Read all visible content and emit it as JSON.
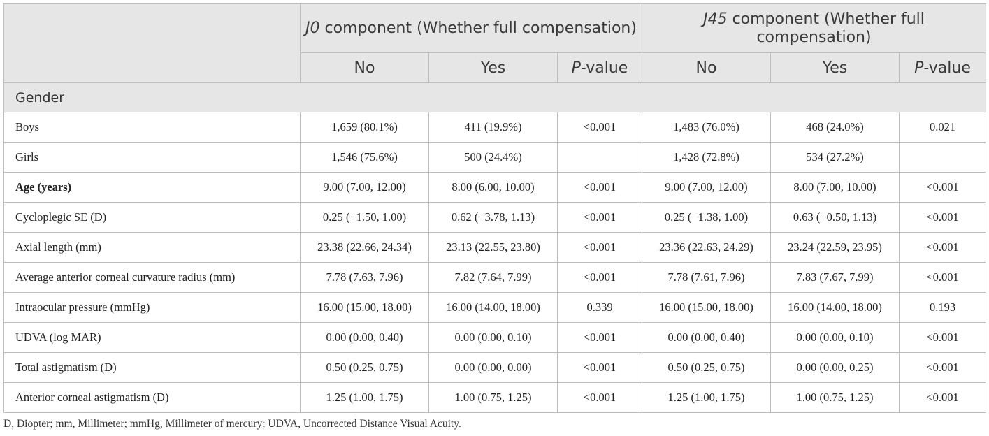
{
  "header": {
    "group1_italic": "J0",
    "group1_rest": " component (Whether full compensation)",
    "group2_italic": "J45",
    "group2_rest": " component (Whether full compensation)",
    "col_no": "No",
    "col_yes": "Yes",
    "col_p_italic": "P",
    "col_p_rest": "-value"
  },
  "section": {
    "gender": "Gender"
  },
  "rows": [
    {
      "label": "Boys",
      "j0_no": "1,659 (80.1%)",
      "j0_yes": "411 (19.9%)",
      "j0_p": "<0.001",
      "j45_no": "1,483 (76.0%)",
      "j45_yes": "468 (24.0%)",
      "j45_p": "0.021"
    },
    {
      "label": "Girls",
      "j0_no": "1,546 (75.6%)",
      "j0_yes": "500 (24.4%)",
      "j0_p": "",
      "j45_no": "1,428 (72.8%)",
      "j45_yes": "534 (27.2%)",
      "j45_p": ""
    },
    {
      "label": "Age (years)",
      "j0_no": "9.00 (7.00, 12.00)",
      "j0_yes": "8.00 (6.00, 10.00)",
      "j0_p": "<0.001",
      "j45_no": "9.00 (7.00, 12.00)",
      "j45_yes": "8.00 (7.00, 10.00)",
      "j45_p": "<0.001"
    },
    {
      "label": "Cycloplegic SE (D)",
      "j0_no": "0.25 (−1.50, 1.00)",
      "j0_yes": "0.62 (−3.78, 1.13)",
      "j0_p": "<0.001",
      "j45_no": "0.25 (−1.38, 1.00)",
      "j45_yes": "0.63 (−0.50, 1.13)",
      "j45_p": "<0.001"
    },
    {
      "label": "Axial length (mm)",
      "j0_no": "23.38 (22.66, 24.34)",
      "j0_yes": "23.13 (22.55, 23.80)",
      "j0_p": "<0.001",
      "j45_no": "23.36 (22.63, 24.29)",
      "j45_yes": "23.24 (22.59, 23.95)",
      "j45_p": "<0.001"
    },
    {
      "label": "Average anterior corneal curvature radius (mm)",
      "j0_no": "7.78 (7.63, 7.96)",
      "j0_yes": "7.82 (7.64, 7.99)",
      "j0_p": "<0.001",
      "j45_no": "7.78 (7.61, 7.96)",
      "j45_yes": "7.83 (7.67, 7.99)",
      "j45_p": "<0.001"
    },
    {
      "label": "Intraocular pressure (mmHg)",
      "j0_no": "16.00 (15.00, 18.00)",
      "j0_yes": "16.00 (14.00, 18.00)",
      "j0_p": "0.339",
      "j45_no": "16.00 (15.00, 18.00)",
      "j45_yes": "16.00 (14.00, 18.00)",
      "j45_p": "0.193"
    },
    {
      "label": "UDVA (log MAR)",
      "j0_no": "0.00 (0.00, 0.40)",
      "j0_yes": "0.00 (0.00, 0.10)",
      "j0_p": "<0.001",
      "j45_no": "0.00 (0.00, 0.40)",
      "j45_yes": "0.00 (0.00, 0.10)",
      "j45_p": "<0.001"
    },
    {
      "label": "Total astigmatism (D)",
      "j0_no": "0.50 (0.25, 0.75)",
      "j0_yes": "0.00 (0.00, 0.00)",
      "j0_p": "<0.001",
      "j45_no": "0.50 (0.25, 0.75)",
      "j45_yes": "0.00 (0.00, 0.25)",
      "j45_p": "<0.001"
    },
    {
      "label": "Anterior corneal astigmatism (D)",
      "j0_no": "1.25 (1.00, 1.75)",
      "j0_yes": "1.00 (0.75, 1.25)",
      "j0_p": "<0.001",
      "j45_no": "1.25 (1.00, 1.75)",
      "j45_yes": "1.00 (0.75, 1.25)",
      "j45_p": "<0.001"
    }
  ],
  "footnote": "D, Diopter; mm, Millimeter; mmHg, Millimeter of mercury; UDVA, Uncorrected Distance Visual Acuity."
}
